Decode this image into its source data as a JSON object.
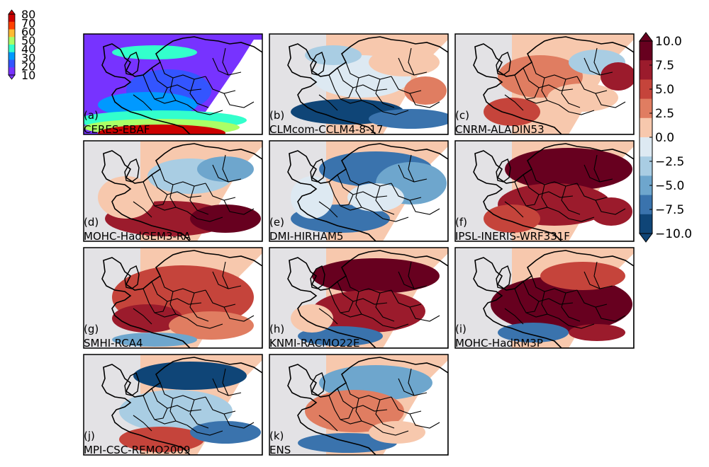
{
  "chart_data": {
    "type": "heatmap",
    "figure": "multi-panel filled-contour maps of Europe",
    "abs_colorbar": {
      "ticks": [
        "80",
        "70",
        "60",
        "50",
        "40",
        "30",
        "20",
        "10"
      ],
      "values": [
        80,
        70,
        60,
        50,
        40,
        30,
        20,
        10
      ],
      "colors": [
        "#cc0000",
        "#ff4000",
        "#ffbb33",
        "#aaff66",
        "#33ffcc",
        "#0099ff",
        "#3355ff",
        "#7733ff"
      ],
      "range": [
        10,
        80
      ],
      "extend": "both"
    },
    "diff_colorbar": {
      "ticks": [
        "10.0",
        "7.5",
        "5.0",
        "2.5",
        "0.0",
        "−2.5",
        "−5.0",
        "−7.5",
        "−10.0"
      ],
      "values": [
        10.0,
        7.5,
        5.0,
        2.5,
        0.0,
        -2.5,
        -5.0,
        -7.5,
        -10.0
      ],
      "colors": [
        "#67001f",
        "#9b1b2c",
        "#c5443b",
        "#e07d61",
        "#f7c8ad",
        "#dde9f2",
        "#a9cde3",
        "#6ea6cd",
        "#3a73ad",
        "#0f4577"
      ],
      "range": [
        -10.0,
        10.0
      ],
      "extend": "both"
    },
    "panels": [
      {
        "label": "(a)",
        "model": "CERES-EBAF",
        "field": "absolute"
      },
      {
        "label": "(b)",
        "model": "CLMcom-CCLM4-8-17",
        "field": "difference"
      },
      {
        "label": "(c)",
        "model": "CNRM-ALADIN53",
        "field": "difference"
      },
      {
        "label": "(d)",
        "model": "MOHC-HadGEM3-RA",
        "field": "difference"
      },
      {
        "label": "(e)",
        "model": "DMI-HIRHAM5",
        "field": "difference"
      },
      {
        "label": "(f)",
        "model": "IPSL-INERIS-WRF331F",
        "field": "difference"
      },
      {
        "label": "(g)",
        "model": "SMHI-RCA4",
        "field": "difference"
      },
      {
        "label": "(h)",
        "model": "KNMI-RACMO22E",
        "field": "difference"
      },
      {
        "label": "(i)",
        "model": "MOHC-HadRM3P",
        "field": "difference"
      },
      {
        "label": "(j)",
        "model": "MPI-CSC-REMO2009",
        "field": "difference"
      },
      {
        "label": "(k)",
        "model": "ENS",
        "field": "difference"
      }
    ]
  }
}
